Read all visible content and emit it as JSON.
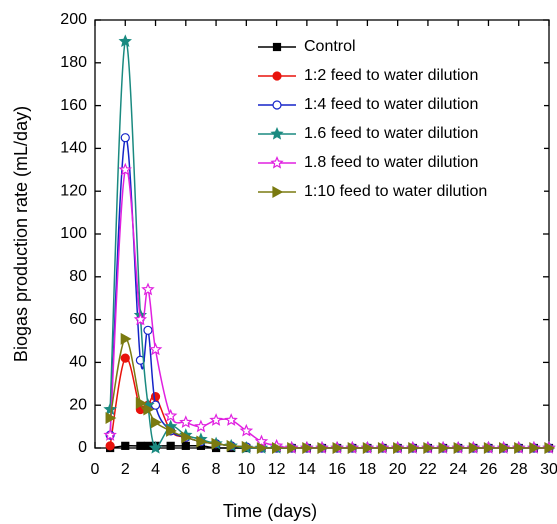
{
  "chart_data": {
    "type": "line",
    "xlabel": "Time (days)",
    "ylabel": "Biogas production rate (mL/day)",
    "x": [
      1,
      2,
      3,
      3.5,
      4,
      5,
      6,
      7,
      8,
      9,
      10,
      11,
      12,
      13,
      14,
      15,
      16,
      17,
      18,
      19,
      20,
      21,
      22,
      23,
      24,
      25,
      26,
      27,
      28,
      29,
      30
    ],
    "series": [
      {
        "name": "Control",
        "color": "#000000",
        "marker": "square",
        "values": [
          0,
          1,
          1,
          1,
          1,
          1,
          1,
          1,
          0,
          0,
          0,
          0,
          0,
          0,
          0,
          0,
          0,
          0,
          0,
          0,
          0,
          0,
          0,
          0,
          0,
          0,
          0,
          0,
          0,
          0,
          0
        ]
      },
      {
        "name": "1:2 feed to water dilution",
        "color": "#e8120c",
        "marker": "circle",
        "values": [
          1,
          42,
          18,
          20,
          24,
          8,
          5,
          3,
          2,
          1,
          0.5,
          0,
          0,
          0,
          0,
          0,
          0,
          0,
          0,
          0,
          0,
          0,
          0,
          0,
          0,
          0,
          0,
          0,
          0,
          0,
          0
        ]
      },
      {
        "name": "1:4 feed to water dilution",
        "color": "#1524c8",
        "marker": "open-circle",
        "values": [
          6,
          145,
          41,
          55,
          20,
          8,
          5,
          3,
          2,
          1,
          0.5,
          0,
          0,
          0,
          0,
          0,
          0,
          0,
          0,
          0,
          0,
          0,
          0,
          0,
          0,
          0,
          0,
          0,
          0,
          0,
          0
        ]
      },
      {
        "name": "1.6 feed to water dilution",
        "color": "#1a8a80",
        "marker": "star",
        "values": [
          18,
          190,
          62,
          20,
          0,
          10,
          6,
          4,
          2,
          1,
          0,
          0,
          0,
          0,
          0,
          0,
          0,
          0,
          0,
          0,
          0,
          0,
          0,
          0,
          0,
          0,
          0,
          0,
          0,
          0,
          0
        ]
      },
      {
        "name": "1.8 feed to water dilution",
        "color": "#e020e0",
        "marker": "open-star",
        "values": [
          6,
          130,
          60,
          74,
          46,
          15,
          12,
          10,
          13,
          13,
          8,
          3,
          1,
          0,
          0,
          0,
          0,
          0,
          0,
          0,
          0,
          0,
          0,
          0,
          0,
          0,
          0,
          0,
          0,
          0,
          0
        ]
      },
      {
        "name": "1:10 feed to water dilution",
        "color": "#7a7a10",
        "marker": "triangle-right",
        "values": [
          14,
          51,
          21,
          18,
          12,
          8,
          5,
          3,
          2,
          1,
          0.5,
          0,
          0,
          0,
          0,
          0,
          0,
          0,
          0,
          0,
          0,
          0,
          0,
          0,
          0,
          0,
          0,
          0,
          0,
          0,
          0
        ]
      }
    ],
    "xlim": [
      0,
      30
    ],
    "ylim": [
      0,
      200
    ],
    "xticks": [
      0,
      2,
      4,
      6,
      8,
      10,
      12,
      14,
      16,
      18,
      20,
      22,
      24,
      26,
      28,
      30
    ],
    "yticks": [
      0,
      20,
      40,
      60,
      80,
      100,
      120,
      140,
      160,
      180,
      200
    ],
    "legend": "upper right"
  }
}
